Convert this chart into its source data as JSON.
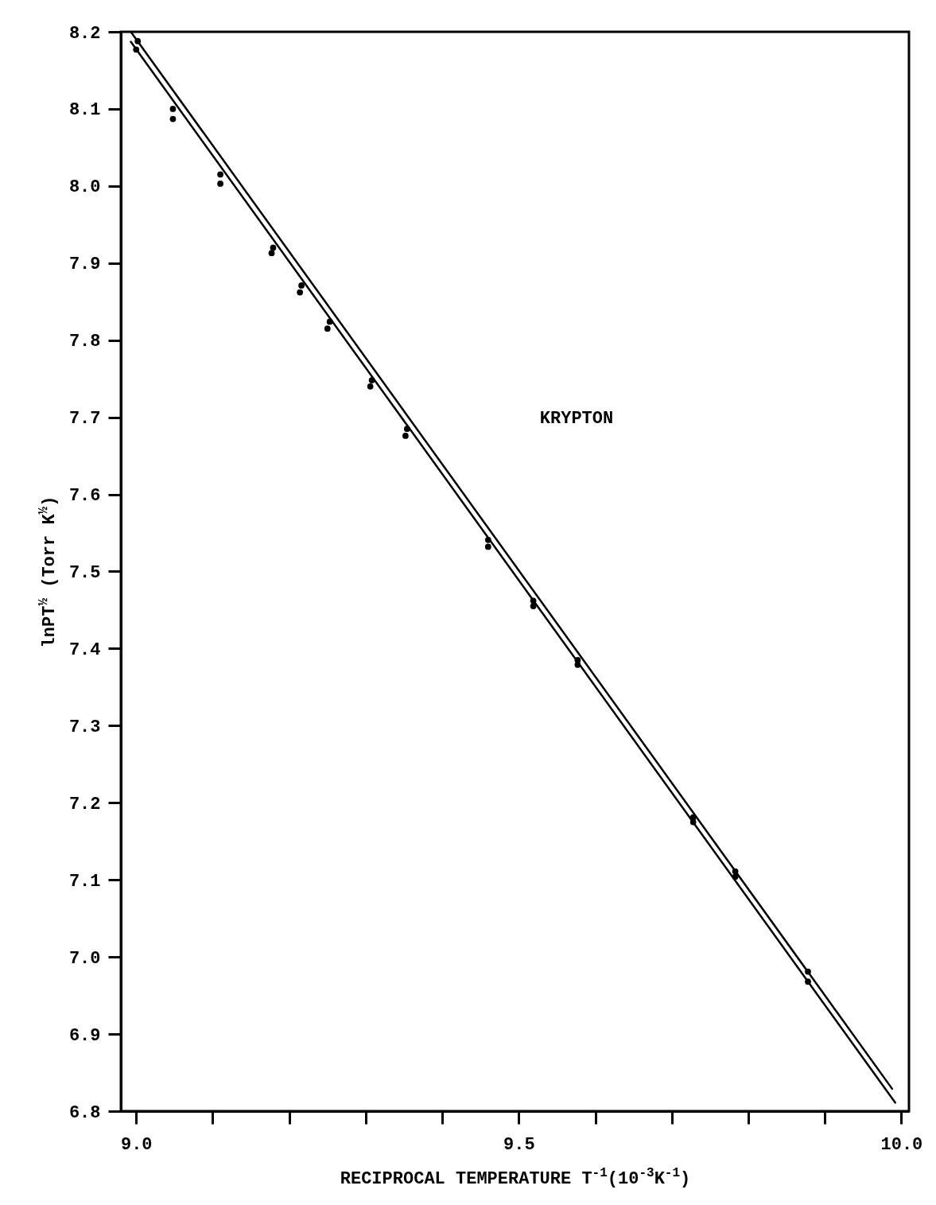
{
  "chart_data": {
    "type": "scatter",
    "xlabel": "RECIPROCAL TEMPERATURE T$^{-1}$(10$^{-3}$K$^{-1}$)",
    "ylabel": "lnPT$^{½}$ (Torr K$^{½}$)",
    "annotations": [
      "KRYPTON"
    ],
    "xlim": [
      8.98,
      10.01
    ],
    "ylim": [
      6.8,
      8.2
    ],
    "xticks": [
      {
        "value": 9,
        "label": "9.0"
      },
      {
        "value": 9.1,
        "label": null
      },
      {
        "value": 9.2,
        "label": null
      },
      {
        "value": 9.3,
        "label": null
      },
      {
        "value": 9.4,
        "label": null
      },
      {
        "value": 9.5,
        "label": "9.5"
      },
      {
        "value": 9.6,
        "label": null
      },
      {
        "value": 9.7,
        "label": null
      },
      {
        "value": 9.8,
        "label": null
      },
      {
        "value": 9.9,
        "label": null
      },
      {
        "value": 10,
        "label": "10.0"
      }
    ],
    "yticks": [
      6.8,
      6.9,
      {
        "value": 7,
        "label": "7.0"
      },
      7.1,
      7.2,
      7.3,
      7.4,
      7.5,
      7.6,
      7.7,
      7.8,
      7.9,
      {
        "value": 8,
        "label": "8.0"
      },
      8.1,
      8.2
    ],
    "grid": false,
    "marker": "circle",
    "series": [
      {
        "color": "#000000",
        "x": [
          9.002,
          9.048,
          9.11,
          9.179,
          9.216,
          9.253,
          9.308,
          9.354,
          9.46,
          9.519,
          9.577,
          9.728,
          9.783,
          9.878
        ],
        "values": [
          8.188,
          8.1,
          8.015,
          7.92,
          7.871,
          7.824,
          7.748,
          7.685,
          7.541,
          7.462,
          7.385,
          7.181,
          7.111,
          6.981
        ]
      },
      {
        "color": "#000000",
        "x": [
          9.0,
          9.048,
          9.11,
          9.177,
          9.214,
          9.25,
          9.306,
          9.352,
          9.46,
          9.519,
          9.577,
          9.728,
          9.783,
          9.878
        ],
        "values": [
          8.177,
          8.087,
          8.003,
          7.913,
          7.862,
          7.815,
          7.74,
          7.676,
          7.532,
          7.455,
          7.379,
          7.175,
          7.104,
          6.968
        ]
      },
      {
        "type": "line",
        "color": "#000000",
        "marker": "none",
        "x": [
          8.993,
          9.988
        ],
        "values": [
          8.2,
          6.829
        ]
      },
      {
        "type": "line",
        "color": "#000000",
        "marker": "none",
        "x": [
          8.993,
          9.992
        ],
        "values": [
          8.187,
          6.811
        ]
      }
    ]
  }
}
